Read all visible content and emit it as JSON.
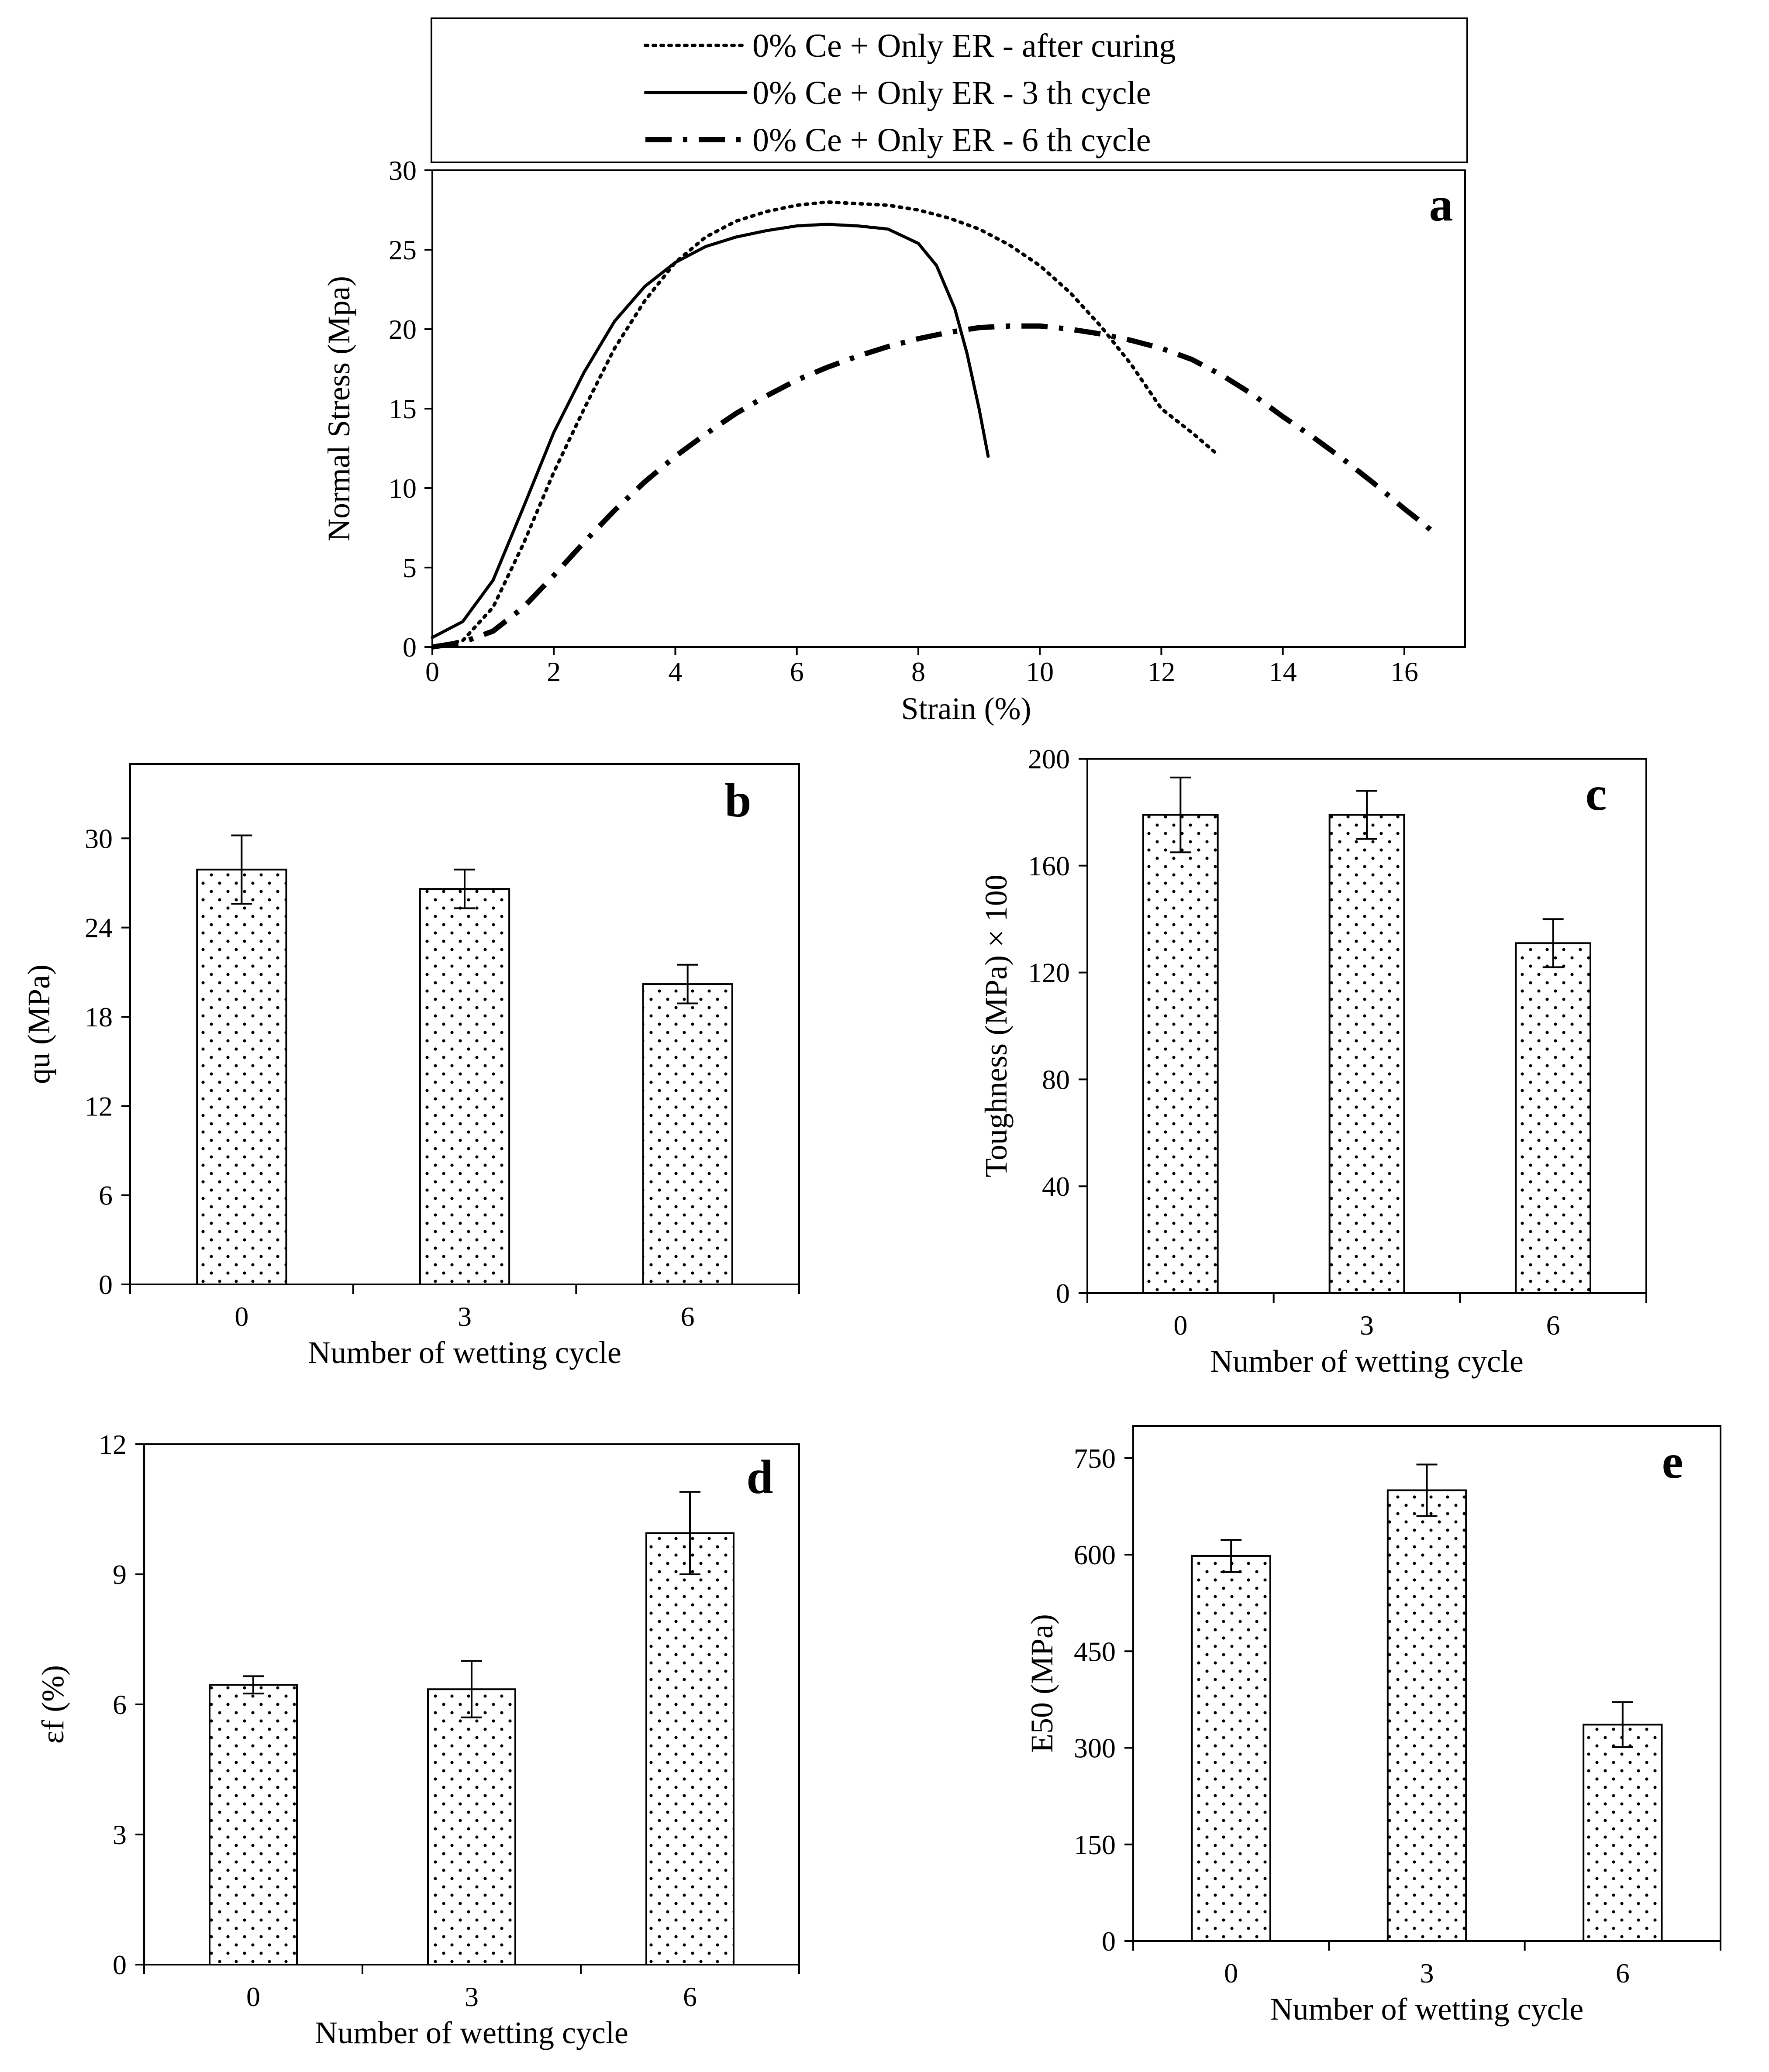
{
  "chart_data": [
    {
      "id": "a",
      "type": "line",
      "panel_label": "a",
      "xlabel": "Strain (%)",
      "ylabel": "Normal Stress (Mpa)",
      "xlim": [
        0,
        17
      ],
      "ylim": [
        0,
        30
      ],
      "xticks": [
        0,
        2,
        4,
        6,
        8,
        10,
        12,
        14,
        16
      ],
      "yticks": [
        0,
        5,
        10,
        15,
        20,
        25,
        30
      ],
      "legend_position": "top",
      "series": [
        {
          "name": "0% Ce + Only ER - after curing",
          "style": "dotted",
          "x": [
            0,
            0.5,
            1,
            1.5,
            2,
            2.5,
            3,
            3.5,
            4,
            4.5,
            5,
            5.5,
            6,
            6.5,
            7,
            7.5,
            8,
            8.5,
            9,
            9.5,
            10,
            10.5,
            11,
            11.5,
            12,
            12.5,
            12.9
          ],
          "y": [
            0,
            0.4,
            2.5,
            6.5,
            11,
            15,
            18.8,
            21.8,
            24.2,
            25.8,
            26.8,
            27.4,
            27.8,
            28.0,
            27.9,
            27.8,
            27.5,
            27.0,
            26.3,
            25.3,
            24.0,
            22.3,
            20.2,
            17.8,
            15.0,
            13.5,
            12.2
          ]
        },
        {
          "name": "0% Ce + Only ER - 3 th cycle",
          "style": "solid",
          "x": [
            0,
            0.5,
            1,
            1.5,
            2,
            2.5,
            3,
            3.5,
            4,
            4.5,
            5,
            5.5,
            6,
            6.5,
            7,
            7.5,
            8,
            8.3,
            8.6,
            8.8,
            9.0,
            9.15
          ],
          "y": [
            0.6,
            1.6,
            4.2,
            8.8,
            13.5,
            17.3,
            20.5,
            22.7,
            24.2,
            25.2,
            25.8,
            26.2,
            26.5,
            26.6,
            26.5,
            26.3,
            25.4,
            24.0,
            21.3,
            18.5,
            15.0,
            12.0
          ]
        },
        {
          "name": "0% Ce + Only ER - 6 th cycle",
          "style": "dash-dot",
          "x": [
            0,
            0.5,
            1,
            1.5,
            2,
            2.5,
            3,
            3.5,
            4,
            4.5,
            5,
            5.5,
            6,
            6.5,
            7,
            7.5,
            8,
            8.5,
            9,
            9.5,
            10,
            10.5,
            11,
            11.5,
            12,
            12.5,
            13,
            13.5,
            14,
            14.5,
            15,
            15.5,
            16,
            16.3,
            16.55
          ],
          "y": [
            0,
            0.3,
            1.0,
            2.5,
            4.5,
            6.6,
            8.6,
            10.4,
            12.0,
            13.4,
            14.7,
            15.8,
            16.8,
            17.6,
            18.3,
            18.9,
            19.4,
            19.8,
            20.1,
            20.2,
            20.2,
            20.0,
            19.7,
            19.3,
            18.8,
            18.1,
            17.1,
            15.9,
            14.5,
            13.2,
            11.8,
            10.3,
            8.7,
            7.8,
            7.0
          ]
        }
      ]
    },
    {
      "id": "b",
      "type": "bar",
      "panel_label": "b",
      "xlabel": "Number of wetting cycle",
      "ylabel": "qu (MPa)",
      "categories": [
        "0",
        "3",
        "6"
      ],
      "values": [
        27.9,
        26.6,
        20.2
      ],
      "errors": [
        2.3,
        1.3,
        1.3
      ],
      "ylim": [
        0,
        35
      ],
      "yticks": [
        0,
        6,
        12,
        18,
        24,
        30
      ]
    },
    {
      "id": "c",
      "type": "bar",
      "panel_label": "c",
      "xlabel": "Number of wetting cycle",
      "ylabel": "Toughness (MPa) × 100",
      "categories": [
        "0",
        "3",
        "6"
      ],
      "values": [
        179,
        179,
        131
      ],
      "errors": [
        14,
        9,
        9
      ],
      "ylim": [
        0,
        200
      ],
      "yticks": [
        0,
        40,
        80,
        120,
        160,
        200
      ]
    },
    {
      "id": "d",
      "type": "bar",
      "panel_label": "d",
      "xlabel": "Number of wetting cycle",
      "ylabel": "εf (%)",
      "categories": [
        "0",
        "3",
        "6"
      ],
      "values": [
        6.45,
        6.35,
        9.95
      ],
      "errors": [
        0.2,
        0.65,
        0.95
      ],
      "ylim": [
        0,
        12
      ],
      "yticks": [
        0,
        3,
        6,
        9,
        12
      ]
    },
    {
      "id": "e",
      "type": "bar",
      "panel_label": "e",
      "xlabel": "Number of wetting cycle",
      "ylabel": "E50 (MPa)",
      "categories": [
        "0",
        "3",
        "6"
      ],
      "values": [
        598,
        700,
        336
      ],
      "errors": [
        25,
        40,
        35
      ],
      "ylim": [
        0,
        800
      ],
      "yticks": [
        0,
        150,
        300,
        450,
        600,
        750
      ]
    }
  ]
}
